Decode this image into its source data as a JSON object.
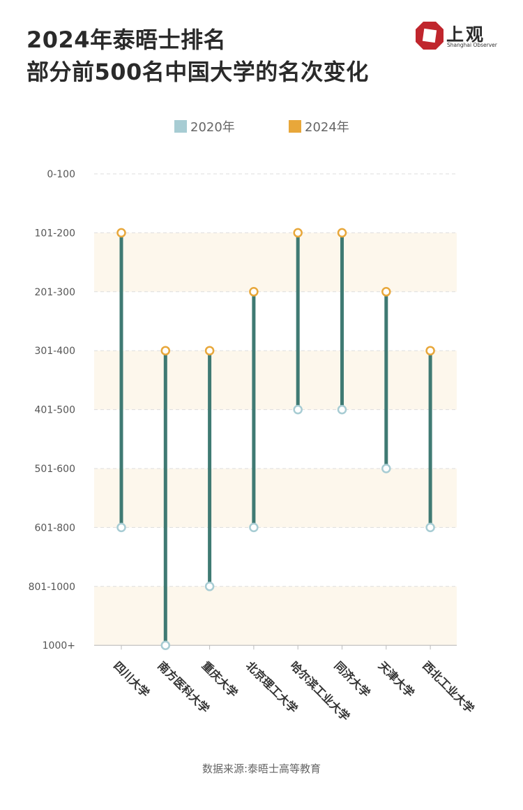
{
  "header": {
    "title_line1": "2024年泰晤士排名",
    "title_line2": "部分前500名中国大学的名次变化"
  },
  "logo": {
    "name": "上观",
    "subtitle": "Shanghai Observer",
    "brand_color": "#c0262d"
  },
  "colors": {
    "y2020": "#a7ccd3",
    "y2024": "#e8a73a",
    "connector": "#3f7a73",
    "band": "#fdf7ec",
    "grid": "#dddddd"
  },
  "chart_data": {
    "type": "dumbbell",
    "title": "2024年泰晤士排名 部分前500名中国大学的名次变化",
    "y_tick_labels": [
      "0-100",
      "101-200",
      "201-300",
      "301-400",
      "401-500",
      "501-600",
      "601-800",
      "801-1000",
      "1000+"
    ],
    "y_axis_order": "top-to-bottom",
    "legend_position": "top",
    "series": [
      {
        "name": "2020年",
        "color": "#a7ccd3"
      },
      {
        "name": "2024年",
        "color": "#e8a73a"
      }
    ],
    "categories": [
      "四川大学",
      "南方医科大学",
      "重庆大学",
      "北京理工大学",
      "哈尔滨工业大学",
      "同济大学",
      "天津大学",
      "西北工业大学"
    ],
    "values_2020": [
      "601-800",
      "1000+",
      "801-1000",
      "601-800",
      "401-500",
      "401-500",
      "501-600",
      "601-800"
    ],
    "values_2024": [
      "101-200",
      "301-400",
      "301-400",
      "201-300",
      "101-200",
      "101-200",
      "201-300",
      "301-400"
    ]
  },
  "source": "数据来源:泰晤士高等教育"
}
